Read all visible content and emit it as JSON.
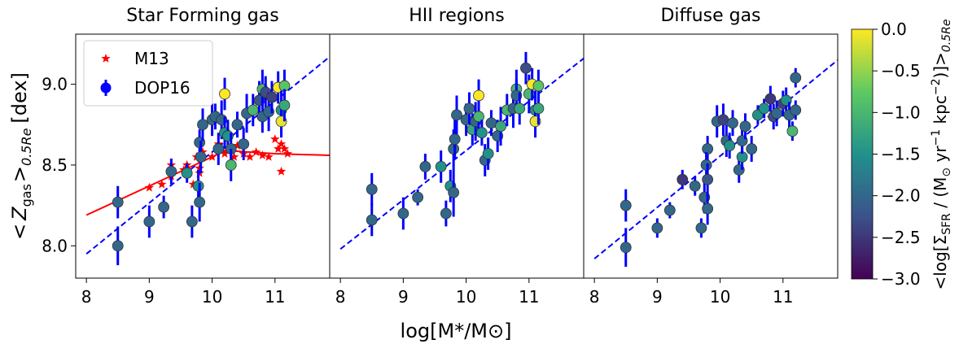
{
  "chart_data": [
    {
      "type": "scatter",
      "title": "Star Forming gas",
      "xlim": [
        7.83,
        11.87
      ],
      "xticks": [
        8,
        9,
        10,
        11
      ],
      "ylim": [
        7.8,
        9.31
      ],
      "yticks": [
        {
          "value": 8.0,
          "label": "8.0"
        },
        {
          "value": 8.5,
          "label": "8.5"
        },
        {
          "value": 9.0,
          "label": "9.0"
        }
      ],
      "legend": "upper left",
      "series": [
        {
          "name": "M13",
          "color": "#ff0000",
          "marker": "star",
          "x": [
            8.5,
            9.0,
            9.2,
            9.35,
            9.35,
            9.55,
            9.6,
            9.7,
            9.75,
            9.8,
            9.8,
            9.85,
            10.0,
            10.1,
            10.15,
            10.2,
            10.25,
            10.35,
            10.3,
            10.4,
            10.5,
            10.6,
            10.7,
            10.8,
            10.9,
            11.0,
            11.05,
            11.1,
            11.1,
            11.15,
            11.2
          ],
          "values": [
            8.27,
            8.36,
            8.38,
            8.5,
            8.43,
            8.47,
            8.5,
            8.38,
            8.55,
            8.45,
            8.48,
            8.58,
            8.55,
            8.63,
            8.6,
            8.57,
            8.6,
            8.55,
            8.49,
            8.62,
            8.57,
            8.55,
            8.58,
            8.56,
            8.55,
            8.66,
            8.6,
            8.63,
            8.46,
            8.6,
            8.57
          ]
        },
        {
          "name": "DOP16",
          "color": "#0000ff",
          "marker": "circle",
          "x": [
            8.5,
            8.5,
            9.0,
            9.23,
            9.35,
            9.6,
            9.68,
            9.78,
            9.8,
            9.8,
            9.82,
            9.85,
            10.0,
            10.05,
            10.1,
            10.15,
            10.2,
            10.2,
            10.25,
            10.3,
            10.3,
            10.4,
            10.5,
            10.55,
            10.65,
            10.75,
            10.8,
            10.8,
            10.85,
            10.9,
            10.95,
            11.05,
            11.1,
            11.1,
            11.15,
            11.15
          ],
          "values": [
            8.0,
            8.27,
            8.15,
            8.24,
            8.46,
            8.45,
            8.15,
            8.37,
            8.27,
            8.64,
            8.55,
            8.75,
            8.78,
            8.8,
            8.6,
            8.78,
            8.94,
            8.7,
            8.68,
            8.6,
            8.5,
            8.75,
            8.63,
            8.82,
            8.84,
            8.9,
            8.97,
            8.8,
            8.95,
            8.83,
            8.92,
            8.98,
            8.84,
            8.77,
            8.99,
            8.87
          ],
          "errors": [
            0.12,
            0.1,
            0.1,
            0.07,
            0.08,
            0.06,
            0.1,
            0.1,
            0.12,
            0.08,
            0.1,
            0.1,
            0.1,
            0.08,
            0.1,
            0.12,
            0.1,
            0.1,
            0.1,
            0.1,
            0.1,
            0.08,
            0.1,
            0.12,
            0.1,
            0.12,
            0.12,
            0.1,
            0.1,
            0.12,
            0.1,
            0.1,
            0.12,
            0.1,
            0.1,
            0.1
          ],
          "colors": [
            -2.0,
            -2.0,
            -2.0,
            -2.0,
            -2.0,
            -1.5,
            -2.0,
            -1.5,
            -2.0,
            -2.0,
            -2.0,
            -2.0,
            -2.0,
            -2.0,
            -2.0,
            -2.0,
            0.0,
            -1.5,
            -1.5,
            -2.0,
            -1.0,
            -2.0,
            -2.0,
            -2.0,
            -1.0,
            -2.2,
            -1.0,
            -2.0,
            -2.3,
            -2.0,
            -2.4,
            0.0,
            -1.5,
            -0.1,
            -0.8,
            -1.2
          ]
        }
      ],
      "fits": [
        {
          "color": "#0000ff",
          "style": "dashed",
          "x": [
            8.0,
            11.87
          ],
          "values": [
            7.95,
            9.17
          ]
        },
        {
          "color": "#ff0000",
          "style": "solid",
          "x": [
            8.0,
            9.0,
            10.0,
            10.2,
            11.0,
            11.87
          ],
          "values": [
            8.19,
            8.37,
            8.55,
            8.59,
            8.57,
            8.56
          ]
        }
      ]
    },
    {
      "type": "scatter",
      "title": "HII regions",
      "xlim": [
        7.83,
        11.87
      ],
      "xticks": [
        8,
        9,
        10,
        11
      ],
      "ylim": [
        7.8,
        9.31
      ],
      "series": [
        {
          "color": "#0000ff",
          "marker": "circle",
          "x": [
            8.5,
            8.5,
            9.0,
            9.23,
            9.35,
            9.6,
            9.68,
            9.75,
            9.8,
            9.8,
            9.82,
            9.85,
            10.0,
            10.05,
            10.1,
            10.15,
            10.2,
            10.2,
            10.25,
            10.3,
            10.35,
            10.4,
            10.5,
            10.55,
            10.65,
            10.75,
            10.8,
            10.8,
            10.85,
            10.95,
            11.0,
            11.05,
            11.1,
            11.1,
            11.15,
            11.15
          ],
          "values": [
            8.16,
            8.35,
            8.2,
            8.3,
            8.49,
            8.49,
            8.2,
            8.37,
            8.33,
            8.6,
            8.66,
            8.81,
            8.78,
            8.85,
            8.72,
            8.77,
            8.93,
            8.8,
            8.7,
            8.53,
            8.57,
            8.76,
            8.68,
            8.74,
            8.84,
            8.85,
            8.97,
            8.93,
            8.85,
            9.1,
            8.94,
            9.0,
            8.84,
            8.77,
            8.99,
            8.85
          ],
          "errors": [
            0.1,
            0.1,
            0.1,
            0.05,
            0.08,
            0.1,
            0.08,
            0.1,
            0.15,
            0.12,
            0.12,
            0.12,
            0.1,
            0.1,
            0.1,
            0.12,
            0.1,
            0.1,
            0.08,
            0.1,
            0.1,
            0.08,
            0.1,
            0.12,
            0.1,
            0.12,
            0.12,
            0.1,
            0.1,
            0.1,
            0.12,
            0.1,
            0.12,
            0.1,
            0.1,
            0.1
          ],
          "colors": [
            -2.0,
            -2.0,
            -2.0,
            -2.0,
            -2.0,
            -1.5,
            -2.0,
            -1.5,
            -2.0,
            -2.0,
            -2.0,
            -2.0,
            -2.0,
            -2.0,
            -1.2,
            -2.0,
            0.0,
            -1.0,
            -1.5,
            -2.0,
            -1.5,
            -2.0,
            -2.0,
            -1.2,
            -1.0,
            -2.0,
            -1.0,
            -2.0,
            -1.2,
            -2.3,
            -1.0,
            0.0,
            -1.5,
            -0.1,
            -0.8,
            -1.2
          ]
        }
      ],
      "fits": [
        {
          "color": "#0000ff",
          "style": "dashed",
          "x": [
            8.0,
            11.87
          ],
          "values": [
            7.98,
            9.16
          ]
        }
      ]
    },
    {
      "type": "scatter",
      "title": "Diffuse gas",
      "xlim": [
        7.83,
        11.87
      ],
      "xticks": [
        8,
        9,
        10,
        11
      ],
      "ylim": [
        7.8,
        9.31
      ],
      "series": [
        {
          "color": "#0000ff",
          "marker": "circle",
          "x": [
            8.5,
            8.5,
            9.0,
            9.2,
            9.4,
            9.6,
            9.7,
            9.75,
            9.8,
            9.8,
            9.78,
            9.8,
            9.95,
            10.05,
            10.1,
            10.15,
            10.2,
            10.3,
            10.35,
            10.35,
            10.4,
            10.5,
            10.6,
            10.7,
            10.8,
            10.85,
            10.9,
            11.0,
            11.05,
            11.1,
            11.15,
            11.2,
            11.2
          ],
          "values": [
            7.99,
            8.25,
            8.11,
            8.22,
            8.41,
            8.37,
            8.11,
            8.3,
            8.23,
            8.6,
            8.5,
            8.41,
            8.77,
            8.78,
            8.65,
            8.62,
            8.76,
            8.47,
            8.55,
            8.65,
            8.74,
            8.6,
            8.81,
            8.85,
            8.91,
            8.8,
            8.82,
            8.88,
            8.9,
            8.81,
            8.71,
            9.04,
            8.84
          ],
          "errors": [
            0.12,
            0.1,
            0.06,
            0.05,
            0.06,
            0.06,
            0.06,
            0.1,
            0.1,
            0.08,
            0.08,
            0.1,
            0.1,
            0.1,
            0.1,
            0.08,
            0.08,
            0.08,
            0.08,
            0.08,
            0.08,
            0.08,
            0.06,
            0.06,
            0.08,
            0.08,
            0.08,
            0.08,
            0.08,
            0.08,
            0.06,
            0.06,
            0.06
          ],
          "colors": [
            -2.0,
            -2.0,
            -2.0,
            -2.0,
            -2.5,
            -2.0,
            -2.0,
            -2.0,
            -2.0,
            -2.0,
            -2.0,
            -2.2,
            -2.0,
            -2.4,
            -2.0,
            -1.5,
            -2.0,
            -2.0,
            -1.5,
            -2.0,
            -2.0,
            -2.0,
            -1.5,
            -1.5,
            -2.5,
            -2.3,
            -2.0,
            -2.4,
            -1.5,
            -2.0,
            -1.0,
            -2.0,
            -2.0
          ]
        }
      ],
      "fits": [
        {
          "color": "#0000ff",
          "style": "dashed",
          "x": [
            8.0,
            11.87
          ],
          "values": [
            7.92,
            9.15
          ]
        }
      ]
    }
  ],
  "xlabel": "log[M*/M⊙]",
  "ylabel": [
    "<",
    "Z",
    "gas",
    ">",
    "0.5Re",
    "[dex]"
  ],
  "colorbar": {
    "cmap": "viridis",
    "clim": [
      -3.0,
      0.0
    ],
    "ticks": [
      {
        "value": 0.0,
        "label": "0.0"
      },
      {
        "value": -0.5,
        "label": "−0.5"
      },
      {
        "value": -1.0,
        "label": "−1.0"
      },
      {
        "value": -1.5,
        "label": "−1.5"
      },
      {
        "value": -2.0,
        "label": "−2.0"
      },
      {
        "value": -2.5,
        "label": "−2.5"
      },
      {
        "value": -3.0,
        "label": "−3.0"
      }
    ],
    "label": [
      "<log[Σ",
      "SFR",
      " / (M",
      "⊙",
      " yr",
      "−1",
      " kpc",
      "−2",
      ")]>",
      "0.5Re"
    ]
  }
}
